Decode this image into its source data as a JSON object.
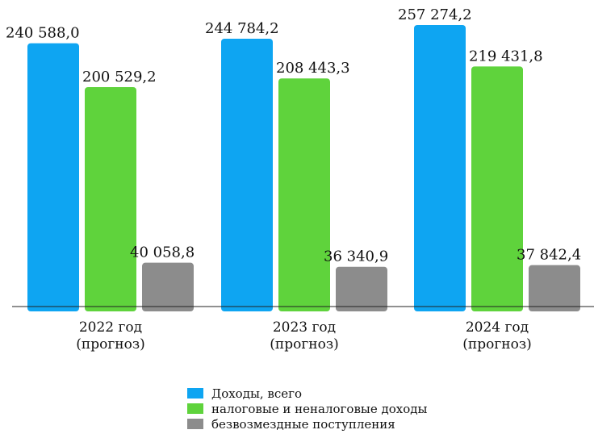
{
  "chart_data": {
    "type": "bar",
    "categories": [
      [
        "2022 год",
        "(прогноз)"
      ],
      [
        "2023 год",
        "(прогноз)"
      ],
      [
        "2024 год",
        "(прогноз)"
      ]
    ],
    "series": [
      {
        "name": "Доходы, всего",
        "color": "#0EA5F2",
        "values": [
          240588.0,
          244784.2,
          257274.2
        ],
        "labels": [
          "240 588,0",
          "244 784,2",
          "257 274,2"
        ]
      },
      {
        "name": "налоговые и неналоговые доходы",
        "color": "#5FD33C",
        "values": [
          200529.2,
          208443.3,
          219431.8
        ],
        "labels": [
          "200 529,2",
          "208 443,3",
          "219 431,8"
        ]
      },
      {
        "name": "безвозмездные поступления",
        "color": "#8C8C8C",
        "values": [
          40058.8,
          36340.9,
          37842.4
        ],
        "labels": [
          "40 058,8",
          "36 340,9",
          "37 842,4"
        ]
      }
    ],
    "ylim": [
      0,
      257274.2
    ],
    "grid": false,
    "legend": "bottom"
  }
}
